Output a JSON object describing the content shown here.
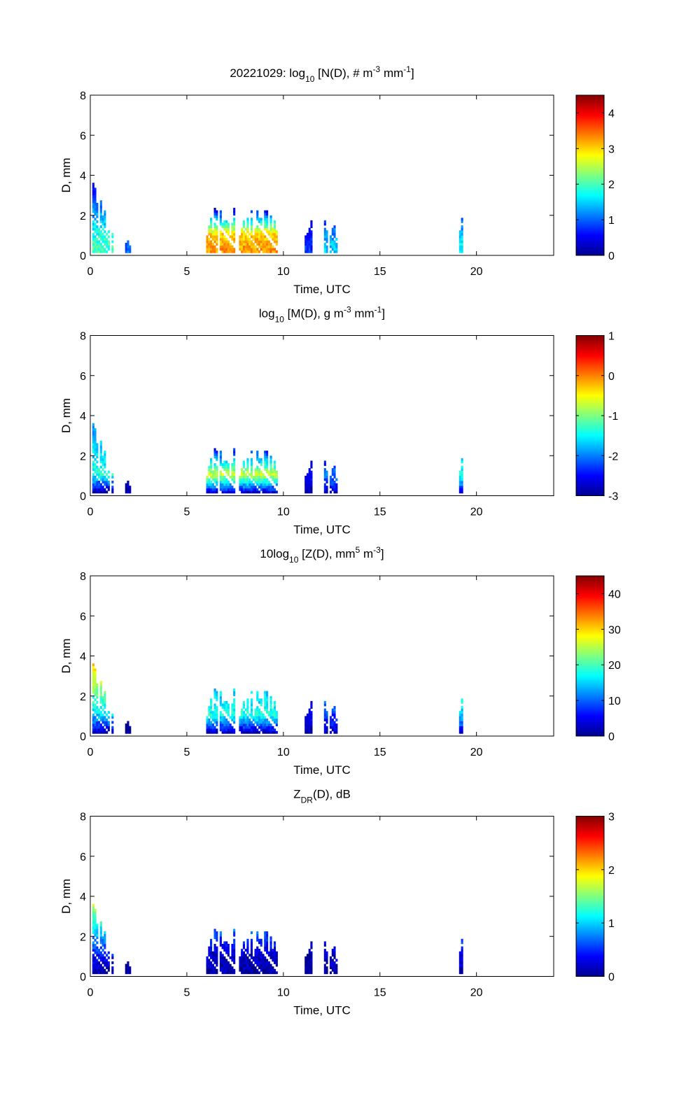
{
  "chart_data": [
    {
      "type": "heatmap",
      "title_parts": [
        {
          "t": "20221029: log"
        },
        {
          "t": "10",
          "s": "sub"
        },
        {
          "t": " [N(D), # m"
        },
        {
          "t": "-3",
          "s": "sup"
        },
        {
          "t": " mm"
        },
        {
          "t": "-1",
          "s": "sup"
        },
        {
          "t": "]"
        }
      ],
      "xlabel": "Time, UTC",
      "ylabel": "D, mm",
      "xlim": [
        0,
        24
      ],
      "ylim": [
        0,
        8
      ],
      "xticks": [
        0,
        5,
        10,
        15,
        20
      ],
      "yticks": [
        0,
        2,
        4,
        6,
        8
      ],
      "clim": [
        0,
        4.5
      ],
      "cticks": [
        0,
        1,
        2,
        3,
        4
      ],
      "events": [
        {
          "t": [
            0.0,
            1.15
          ],
          "dmax": 3.8,
          "v": [
            2.0,
            1.8,
            0.3
          ]
        },
        {
          "t": [
            1.8,
            2.0
          ],
          "dmax": 1.1,
          "v": [
            1.0,
            1.0,
            1.0
          ]
        },
        {
          "t": [
            6.0,
            9.7
          ],
          "dmax": 2.3,
          "v": [
            3.3,
            3.0,
            0.3
          ]
        },
        {
          "t": [
            11.1,
            11.4
          ],
          "dmax": 1.8,
          "v": [
            0.8,
            0.6,
            0.3
          ]
        },
        {
          "t": [
            12.0,
            12.8
          ],
          "dmax": 1.9,
          "v": [
            1.5,
            1.2,
            0.5
          ]
        },
        {
          "t": [
            19.1,
            19.25
          ],
          "dmax": 2.1,
          "v": [
            1.8,
            1.5,
            0.5
          ]
        }
      ]
    },
    {
      "type": "heatmap",
      "title_parts": [
        {
          "t": "log"
        },
        {
          "t": "10",
          "s": "sub"
        },
        {
          "t": " [M(D), g m"
        },
        {
          "t": "-3",
          "s": "sup"
        },
        {
          "t": " mm"
        },
        {
          "t": "-1",
          "s": "sup"
        },
        {
          "t": "]"
        }
      ],
      "xlabel": "Time, UTC",
      "ylabel": "D, mm",
      "xlim": [
        0,
        24
      ],
      "ylim": [
        0,
        8
      ],
      "xticks": [
        0,
        5,
        10,
        15,
        20
      ],
      "yticks": [
        0,
        2,
        4,
        6,
        8
      ],
      "clim": [
        -3,
        1
      ],
      "cticks": [
        -3,
        -2,
        -1,
        0,
        1
      ],
      "events": [
        {
          "t": [
            0.0,
            1.15
          ],
          "dmax": 3.8,
          "v": [
            -2.8,
            -1.4,
            -2.0
          ]
        },
        {
          "t": [
            1.8,
            2.0
          ],
          "dmax": 1.1,
          "v": [
            -2.8,
            -2.8,
            -2.8
          ]
        },
        {
          "t": [
            6.0,
            9.7
          ],
          "dmax": 2.3,
          "v": [
            -2.6,
            -0.7,
            -2.5
          ]
        },
        {
          "t": [
            11.1,
            11.4
          ],
          "dmax": 1.8,
          "v": [
            -2.8,
            -2.5,
            -2.8
          ]
        },
        {
          "t": [
            12.0,
            12.8
          ],
          "dmax": 1.9,
          "v": [
            -2.7,
            -2.0,
            -2.7
          ]
        },
        {
          "t": [
            19.1,
            19.25
          ],
          "dmax": 2.1,
          "v": [
            -2.5,
            -1.3,
            -2.0
          ]
        }
      ]
    },
    {
      "type": "heatmap",
      "title_parts": [
        {
          "t": "10log"
        },
        {
          "t": "10",
          "s": "sub"
        },
        {
          "t": " [Z(D),  mm"
        },
        {
          "t": "5",
          "s": "sup"
        },
        {
          "t": " m"
        },
        {
          "t": "-3",
          "s": "sup"
        },
        {
          "t": "]"
        }
      ],
      "xlabel": "Time, UTC",
      "ylabel": "D, mm",
      "xlim": [
        0,
        24
      ],
      "ylim": [
        0,
        8
      ],
      "xticks": [
        0,
        5,
        10,
        15,
        20
      ],
      "yticks": [
        0,
        2,
        4,
        6,
        8
      ],
      "clim": [
        0,
        45
      ],
      "cticks": [
        0,
        10,
        20,
        30,
        40
      ],
      "events": [
        {
          "t": [
            0.0,
            1.15
          ],
          "dmax": 3.8,
          "v": [
            3,
            15,
            32
          ]
        },
        {
          "t": [
            1.8,
            2.0
          ],
          "dmax": 1.1,
          "v": [
            1,
            1,
            1
          ]
        },
        {
          "t": [
            6.0,
            9.7
          ],
          "dmax": 2.3,
          "v": [
            3,
            18,
            15
          ]
        },
        {
          "t": [
            11.1,
            11.4
          ],
          "dmax": 1.8,
          "v": [
            2,
            5,
            3
          ]
        },
        {
          "t": [
            12.0,
            12.8
          ],
          "dmax": 1.9,
          "v": [
            3,
            8,
            12
          ]
        },
        {
          "t": [
            19.1,
            19.25
          ],
          "dmax": 2.1,
          "v": [
            5,
            15,
            18
          ]
        }
      ]
    },
    {
      "type": "heatmap",
      "title_parts": [
        {
          "t": "Z"
        },
        {
          "t": "DR",
          "s": "sub"
        },
        {
          "t": "(D), dB"
        }
      ],
      "xlabel": "Time, UTC",
      "ylabel": "D, mm",
      "xlim": [
        0,
        24
      ],
      "ylim": [
        0,
        8
      ],
      "xticks": [
        0,
        5,
        10,
        15,
        20
      ],
      "yticks": [
        0,
        2,
        4,
        6,
        8
      ],
      "clim": [
        0,
        3
      ],
      "cticks": [
        0,
        1,
        2,
        3
      ],
      "events": [
        {
          "t": [
            0.0,
            1.15
          ],
          "dmax": 3.8,
          "v": [
            0.1,
            0.4,
            1.8
          ]
        },
        {
          "t": [
            1.8,
            2.0
          ],
          "dmax": 1.1,
          "v": [
            0.1,
            0.1,
            0.1
          ]
        },
        {
          "t": [
            6.0,
            9.7
          ],
          "dmax": 2.3,
          "v": [
            0.1,
            0.2,
            0.7
          ]
        },
        {
          "t": [
            11.1,
            11.4
          ],
          "dmax": 1.8,
          "v": [
            0.1,
            0.1,
            0.2
          ]
        },
        {
          "t": [
            12.0,
            12.8
          ],
          "dmax": 1.9,
          "v": [
            0.1,
            0.2,
            0.4
          ]
        },
        {
          "t": [
            19.1,
            19.25
          ],
          "dmax": 2.1,
          "v": [
            0.2,
            0.3,
            0.6
          ]
        }
      ]
    }
  ]
}
